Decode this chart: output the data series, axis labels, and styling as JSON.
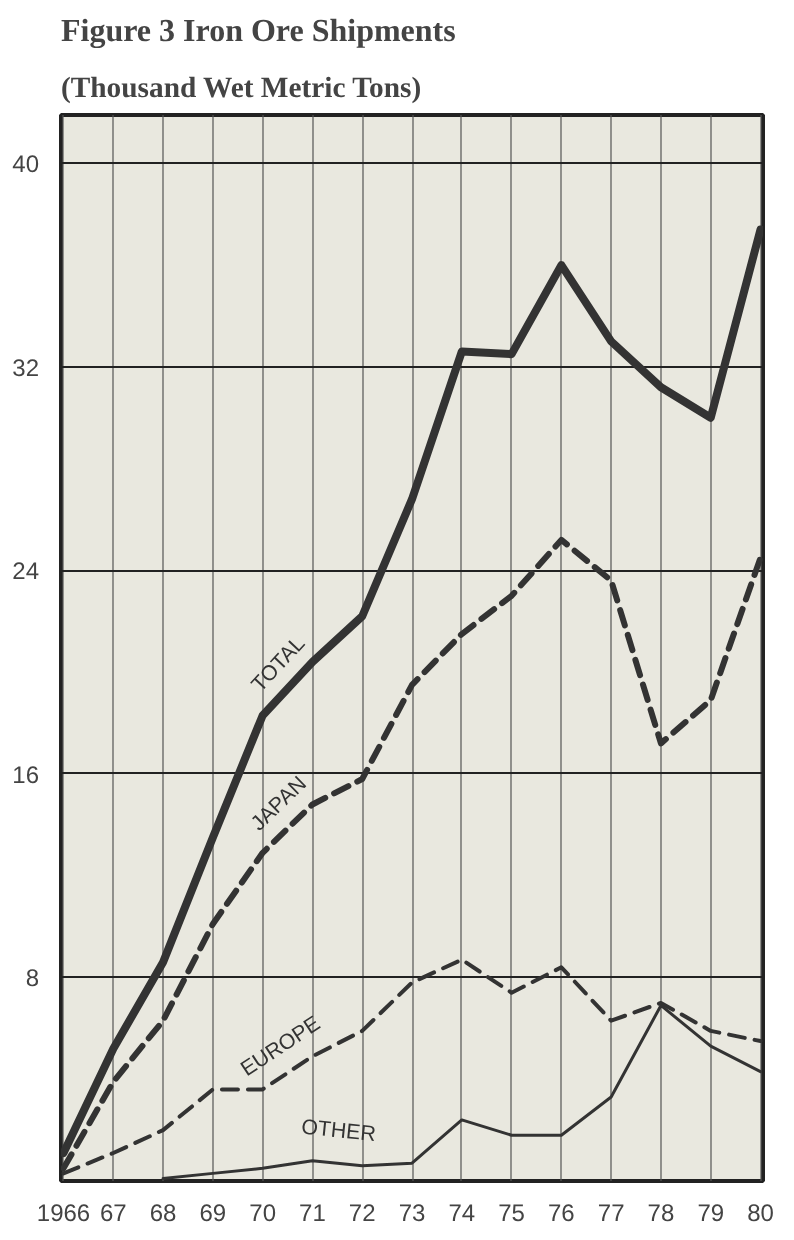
{
  "chart_data": {
    "type": "line",
    "title": "Figure 3 Iron Ore Shipments",
    "subtitle": "(Thousand Wet Metric Tons)",
    "categories": [
      "1966",
      "67",
      "68",
      "69",
      "70",
      "71",
      "72",
      "73",
      "74",
      "75",
      "76",
      "77",
      "78",
      "79",
      "80"
    ],
    "series": [
      {
        "name": "TOTAL",
        "color": "#333333",
        "line_style": "solid",
        "values": [
          1.1,
          5.2,
          8.6,
          13.5,
          18.3,
          20.4,
          22.2,
          26.8,
          32.6,
          32.5,
          36.0,
          33.0,
          31.2,
          30.0,
          37.4
        ]
      },
      {
        "name": "JAPAN",
        "color": "#333333",
        "line_style": "dashed",
        "values": [
          0.5,
          3.9,
          6.3,
          10.1,
          12.9,
          14.8,
          15.8,
          19.5,
          21.5,
          23.0,
          25.2,
          23.6,
          17.2,
          18.9,
          24.5
        ]
      },
      {
        "name": "EUROPE",
        "color": "#333333",
        "line_style": "dashed",
        "values": [
          0.3,
          1.1,
          2.0,
          3.6,
          3.6,
          4.9,
          5.9,
          7.8,
          8.7,
          7.4,
          8.4,
          6.3,
          7.0,
          5.9,
          5.5
        ]
      },
      {
        "name": "OTHER",
        "color": "#333333",
        "line_style": "solid",
        "values": [
          null,
          null,
          0.1,
          0.3,
          0.5,
          0.8,
          0.6,
          0.7,
          2.4,
          1.8,
          1.8,
          3.3,
          6.9,
          5.3,
          4.3
        ]
      }
    ],
    "ylim": [
      0,
      41.9
    ],
    "yticks": [
      8,
      16,
      24,
      32,
      40
    ],
    "grid": true,
    "marker": "none"
  }
}
